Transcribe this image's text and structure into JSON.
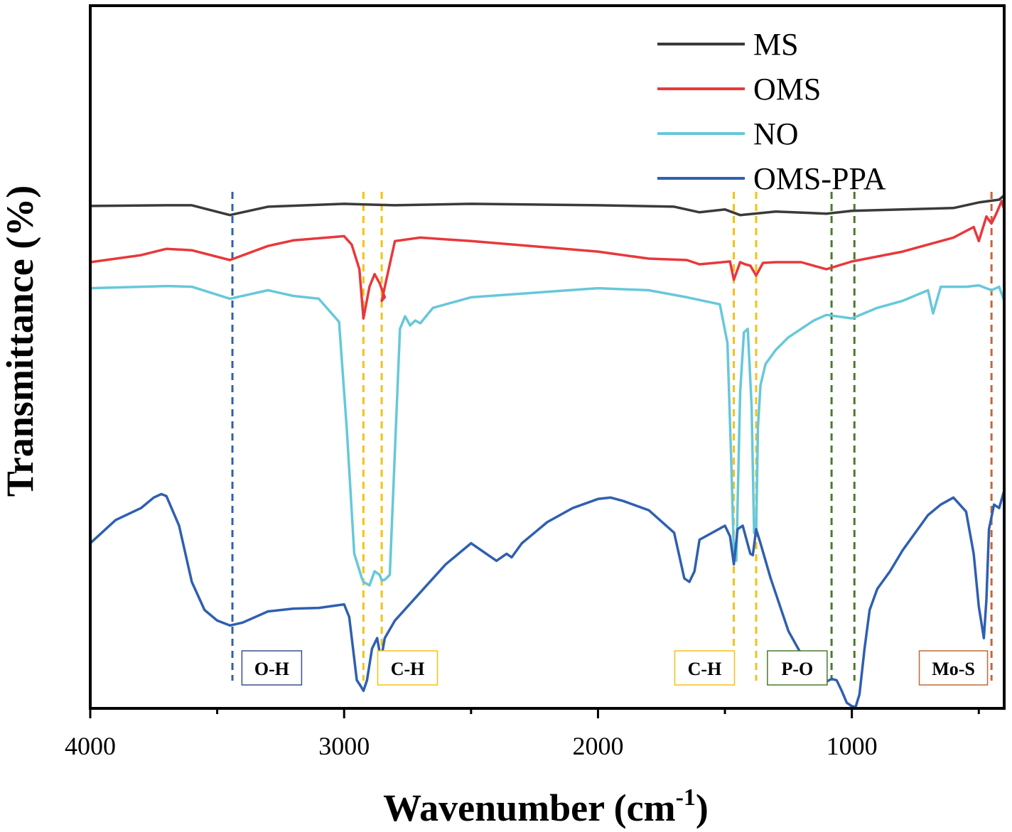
{
  "chart_data": {
    "type": "line",
    "title": "",
    "xlabel": "Wavenumber (cm",
    "xlabel_sup": "-1",
    "xlabel_suffix": ")",
    "ylabel": "Transmittance (%)",
    "xlim": [
      4000,
      400
    ],
    "x_reversed": true,
    "xticks": [
      4000,
      3000,
      2000,
      1000
    ],
    "xtick_labels": [
      "4000",
      "3000",
      "2000",
      "1000"
    ],
    "y_scale": "arbitrary (stacked, offset spectra)",
    "ylim": [
      0,
      100
    ],
    "grid": false,
    "legend": {
      "position": "top-right",
      "entries": [
        {
          "name": "MS",
          "color": "#3a3a3a"
        },
        {
          "name": "OMS",
          "color": "#e8383b"
        },
        {
          "name": "NO",
          "color": "#66c8da"
        },
        {
          "name": "OMS-PPA",
          "color": "#2f5fb0"
        }
      ]
    },
    "series": [
      {
        "name": "MS",
        "color": "#3a3a3a",
        "x": [
          4000,
          3700,
          3600,
          3450,
          3300,
          3000,
          2800,
          2500,
          2000,
          1700,
          1600,
          1500,
          1440,
          1300,
          1100,
          1000,
          800,
          600,
          500,
          420,
          400
        ],
        "y": [
          71.5,
          71.6,
          71.6,
          70.2,
          71.4,
          71.8,
          71.6,
          71.8,
          71.6,
          71.4,
          70.6,
          71.0,
          70.2,
          70.7,
          70.4,
          70.8,
          71.0,
          71.2,
          72.0,
          72.4,
          73.0
        ]
      },
      {
        "name": "OMS",
        "color": "#e8383b",
        "x": [
          4000,
          3800,
          3700,
          3600,
          3450,
          3300,
          3200,
          3000,
          2970,
          2940,
          2924,
          2900,
          2880,
          2860,
          2840,
          2852,
          2800,
          2700,
          2500,
          2000,
          1800,
          1650,
          1600,
          1480,
          1465,
          1440,
          1420,
          1400,
          1377,
          1350,
          1300,
          1200,
          1100,
          1000,
          800,
          600,
          520,
          500,
          470,
          450,
          430,
          410,
          400
        ],
        "y": [
          63.5,
          64.5,
          65.4,
          65.2,
          63.8,
          65.8,
          66.6,
          67.2,
          66.0,
          62.5,
          55.5,
          60.0,
          61.8,
          60.5,
          58.5,
          58.0,
          66.5,
          67.0,
          66.5,
          65.0,
          64.0,
          63.8,
          63.2,
          63.6,
          61.0,
          63.5,
          63.2,
          63.0,
          61.6,
          63.4,
          63.5,
          63.5,
          62.5,
          63.6,
          65.0,
          67.0,
          68.5,
          66.5,
          70.0,
          69.0,
          70.5,
          72.2,
          71.0
        ]
      },
      {
        "name": "NO",
        "color": "#66c8da",
        "x": [
          4000,
          3800,
          3700,
          3600,
          3450,
          3300,
          3200,
          3100,
          3020,
          2990,
          2960,
          2930,
          2924,
          2900,
          2880,
          2860,
          2852,
          2840,
          2820,
          2780,
          2760,
          2740,
          2720,
          2700,
          2650,
          2500,
          2000,
          1800,
          1650,
          1520,
          1490,
          1475,
          1465,
          1455,
          1440,
          1425,
          1410,
          1395,
          1385,
          1377,
          1370,
          1360,
          1340,
          1300,
          1250,
          1200,
          1150,
          1100,
          1000,
          900,
          800,
          700,
          680,
          650,
          550,
          500,
          450,
          420,
          400
        ],
        "y": [
          59.8,
          60.0,
          60.1,
          60.0,
          58.3,
          59.5,
          58.7,
          58.3,
          55.0,
          40.0,
          22.0,
          18.5,
          18.0,
          17.5,
          19.5,
          19.0,
          18.2,
          18.3,
          19.0,
          54.0,
          55.8,
          54.5,
          55.2,
          54.8,
          57.0,
          58.5,
          59.8,
          59.5,
          58.5,
          57.5,
          52.0,
          35.0,
          22.0,
          21.0,
          45.0,
          53.5,
          54.0,
          43.0,
          25.0,
          24.8,
          40.0,
          46.0,
          49.0,
          51.0,
          52.8,
          54.0,
          55.2,
          56.0,
          55.5,
          57.0,
          58.0,
          59.5,
          56.2,
          60.0,
          60.0,
          60.2,
          59.5,
          60.0,
          58.0
        ]
      },
      {
        "name": "OMS-PPA",
        "color": "#2f5fb0",
        "x": [
          4000,
          3900,
          3800,
          3750,
          3720,
          3700,
          3650,
          3600,
          3550,
          3500,
          3450,
          3400,
          3300,
          3200,
          3100,
          3000,
          2980,
          2950,
          2935,
          2924,
          2910,
          2890,
          2870,
          2860,
          2852,
          2840,
          2800,
          2700,
          2600,
          2500,
          2400,
          2360,
          2340,
          2300,
          2200,
          2100,
          2000,
          1950,
          1900,
          1800,
          1700,
          1660,
          1640,
          1620,
          1600,
          1500,
          1480,
          1465,
          1450,
          1430,
          1400,
          1390,
          1377,
          1360,
          1320,
          1250,
          1150,
          1120,
          1100,
          1080,
          1060,
          1040,
          1020,
          1000,
          985,
          970,
          950,
          930,
          900,
          850,
          800,
          700,
          650,
          600,
          550,
          520,
          500,
          480,
          470,
          460,
          440,
          420,
          400
        ],
        "y": [
          23.5,
          26.8,
          28.5,
          30.0,
          30.5,
          30.2,
          26.0,
          18.0,
          14.0,
          12.5,
          11.8,
          12.2,
          13.8,
          14.2,
          14.3,
          14.8,
          13.0,
          4.0,
          3.2,
          2.5,
          4.0,
          8.5,
          10.0,
          8.0,
          7.5,
          10.0,
          12.5,
          16.5,
          20.5,
          23.5,
          21.0,
          22.0,
          21.5,
          23.5,
          26.5,
          28.5,
          29.8,
          30.0,
          29.5,
          28.2,
          25.0,
          18.5,
          18.0,
          19.5,
          24.0,
          26.0,
          24.5,
          20.5,
          25.5,
          26.0,
          22.0,
          21.8,
          25.5,
          23.5,
          18.5,
          11.0,
          4.5,
          3.5,
          3.8,
          4.2,
          4.0,
          2.5,
          0.8,
          0.3,
          0.2,
          2.0,
          8.5,
          14.0,
          17.0,
          19.5,
          22.5,
          27.5,
          29.0,
          30.0,
          28.0,
          22.0,
          14.5,
          10.0,
          15.5,
          25.5,
          29.0,
          28.5,
          31.0
        ]
      }
    ],
    "annotations": {
      "band_lines": [
        {
          "x": 3440,
          "color": "#2f5fb0",
          "group": "O-H"
        },
        {
          "x": 2924,
          "color": "#f5c116",
          "group": "C-H"
        },
        {
          "x": 2852,
          "color": "#f5c116",
          "group": "C-H"
        },
        {
          "x": 1465,
          "color": "#f5c116",
          "group": "C-H"
        },
        {
          "x": 1377,
          "color": "#f5c116",
          "group": "C-H"
        },
        {
          "x": 1080,
          "color": "#4a7a2c",
          "group": "P-O"
        },
        {
          "x": 990,
          "color": "#4a7a2c",
          "group": "P-O"
        },
        {
          "x": 450,
          "color": "#c0683a",
          "group": "Mo-S"
        }
      ],
      "band_labels": [
        {
          "text": "O-H",
          "x_center": 3285,
          "border": "#3a4f8a"
        },
        {
          "text": "C-H",
          "x_center": 2750,
          "border": "#f5c116"
        },
        {
          "text": "C-H",
          "x_center": 1580,
          "border": "#f5c116"
        },
        {
          "text": "P-O",
          "x_center": 1215,
          "border": "#4a7a2c"
        },
        {
          "text": "Mo-S",
          "x_center": 600,
          "border": "#c0683a"
        }
      ]
    }
  }
}
